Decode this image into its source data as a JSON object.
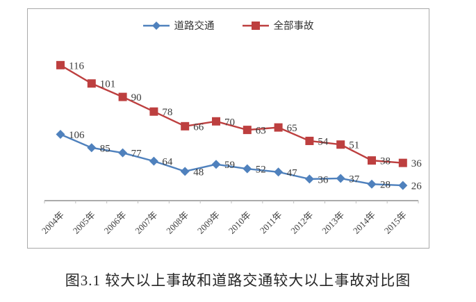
{
  "chart_data": {
    "type": "line",
    "title": "",
    "categories": [
      "2004年",
      "2005年",
      "2006年",
      "2007年",
      "2008年",
      "2009年",
      "2010年",
      "2011年",
      "2012年",
      "2013年",
      "2014年",
      "2015年"
    ],
    "series": [
      {
        "name": "道路交通",
        "marker": "diamond",
        "color": "#4f81bd",
        "values": [
          106,
          85,
          77,
          64,
          48,
          59,
          52,
          47,
          36,
          37,
          28,
          26
        ]
      },
      {
        "name": "全部事故",
        "marker": "square",
        "color": "#bd3f3f",
        "values": [
          116,
          101,
          90,
          78,
          66,
          70,
          63,
          65,
          54,
          51,
          38,
          36
        ]
      }
    ],
    "legend_position": "top",
    "grid": false,
    "data_labels": true,
    "x_tick_rotation": -45,
    "y_axis_visible": false
  },
  "caption": "图3.1 较大以上事故和道路交通较大以上事故对比图",
  "colors": {
    "road_traffic_series": "#4f81bd",
    "all_accidents_series": "#bd3f3f",
    "chart_border": "#a9a9a9",
    "axis_line": "#8f8f8f",
    "tick_label_text": "#3f3f3f",
    "data_label_text": "#3a3a3a",
    "background": "#ffffff"
  }
}
